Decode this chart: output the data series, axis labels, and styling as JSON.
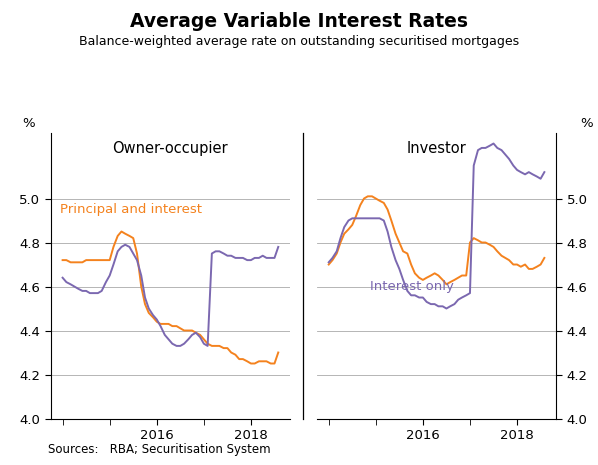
{
  "title": "Average Variable Interest Rates",
  "subtitle": "Balance-weighted average rate on outstanding securitised mortgages",
  "left_panel_title": "Owner-occupier",
  "right_panel_title": "Investor",
  "ylabel_left": "%",
  "ylabel_right": "%",
  "source": "Sources:   RBA; Securitisation System",
  "ylim": [
    4.0,
    5.3
  ],
  "yticks": [
    4.0,
    4.2,
    4.4,
    4.6,
    4.8,
    5.0
  ],
  "xlim": [
    2013.75,
    2018.83
  ],
  "orange_color": "#F4821E",
  "purple_color": "#7B68B0",
  "line_width": 1.4,
  "oo_pi_x": [
    2014.0,
    2014.08,
    2014.17,
    2014.25,
    2014.33,
    2014.42,
    2014.5,
    2014.58,
    2014.67,
    2014.75,
    2014.83,
    2014.92,
    2015.0,
    2015.08,
    2015.17,
    2015.25,
    2015.33,
    2015.42,
    2015.5,
    2015.58,
    2015.67,
    2015.75,
    2015.83,
    2015.92,
    2016.0,
    2016.08,
    2016.17,
    2016.25,
    2016.33,
    2016.42,
    2016.5,
    2016.58,
    2016.67,
    2016.75,
    2016.83,
    2016.92,
    2017.0,
    2017.08,
    2017.17,
    2017.25,
    2017.33,
    2017.42,
    2017.5,
    2017.58,
    2017.67,
    2017.75,
    2017.83,
    2017.92,
    2018.0,
    2018.08,
    2018.17,
    2018.25,
    2018.33,
    2018.42,
    2018.5,
    2018.58
  ],
  "oo_pi_y": [
    4.72,
    4.72,
    4.71,
    4.71,
    4.71,
    4.71,
    4.72,
    4.72,
    4.72,
    4.72,
    4.72,
    4.72,
    4.72,
    4.78,
    4.83,
    4.85,
    4.84,
    4.83,
    4.82,
    4.75,
    4.6,
    4.52,
    4.48,
    4.46,
    4.44,
    4.43,
    4.43,
    4.43,
    4.42,
    4.42,
    4.41,
    4.4,
    4.4,
    4.4,
    4.39,
    4.38,
    4.36,
    4.34,
    4.33,
    4.33,
    4.33,
    4.32,
    4.32,
    4.3,
    4.29,
    4.27,
    4.27,
    4.26,
    4.25,
    4.25,
    4.26,
    4.26,
    4.26,
    4.25,
    4.25,
    4.3
  ],
  "oo_io_x": [
    2014.0,
    2014.08,
    2014.17,
    2014.25,
    2014.33,
    2014.42,
    2014.5,
    2014.58,
    2014.67,
    2014.75,
    2014.83,
    2014.92,
    2015.0,
    2015.08,
    2015.17,
    2015.25,
    2015.33,
    2015.42,
    2015.5,
    2015.58,
    2015.67,
    2015.75,
    2015.83,
    2015.92,
    2016.0,
    2016.08,
    2016.17,
    2016.25,
    2016.33,
    2016.42,
    2016.5,
    2016.58,
    2016.67,
    2016.75,
    2016.83,
    2016.92,
    2017.0,
    2017.08,
    2017.17,
    2017.25,
    2017.33,
    2017.42,
    2017.5,
    2017.58,
    2017.67,
    2017.75,
    2017.83,
    2017.92,
    2018.0,
    2018.08,
    2018.17,
    2018.25,
    2018.33,
    2018.42,
    2018.5,
    2018.58
  ],
  "oo_io_y": [
    4.64,
    4.62,
    4.61,
    4.6,
    4.59,
    4.58,
    4.58,
    4.57,
    4.57,
    4.57,
    4.58,
    4.62,
    4.65,
    4.7,
    4.76,
    4.78,
    4.79,
    4.78,
    4.75,
    4.72,
    4.65,
    4.55,
    4.5,
    4.47,
    4.45,
    4.42,
    4.38,
    4.36,
    4.34,
    4.33,
    4.33,
    4.34,
    4.36,
    4.38,
    4.39,
    4.37,
    4.34,
    4.33,
    4.75,
    4.76,
    4.76,
    4.75,
    4.74,
    4.74,
    4.73,
    4.73,
    4.73,
    4.72,
    4.72,
    4.73,
    4.73,
    4.74,
    4.73,
    4.73,
    4.73,
    4.78
  ],
  "inv_pi_x": [
    2014.0,
    2014.08,
    2014.17,
    2014.25,
    2014.33,
    2014.42,
    2014.5,
    2014.58,
    2014.67,
    2014.75,
    2014.83,
    2014.92,
    2015.0,
    2015.08,
    2015.17,
    2015.25,
    2015.33,
    2015.42,
    2015.5,
    2015.58,
    2015.67,
    2015.75,
    2015.83,
    2015.92,
    2016.0,
    2016.08,
    2016.17,
    2016.25,
    2016.33,
    2016.42,
    2016.5,
    2016.58,
    2016.67,
    2016.75,
    2016.83,
    2016.92,
    2017.0,
    2017.08,
    2017.17,
    2017.25,
    2017.33,
    2017.42,
    2017.5,
    2017.58,
    2017.67,
    2017.75,
    2017.83,
    2017.92,
    2018.0,
    2018.08,
    2018.17,
    2018.25,
    2018.33,
    2018.42,
    2018.5,
    2018.58
  ],
  "inv_pi_y": [
    4.7,
    4.72,
    4.75,
    4.8,
    4.84,
    4.86,
    4.88,
    4.92,
    4.97,
    5.0,
    5.01,
    5.01,
    5.0,
    4.99,
    4.98,
    4.95,
    4.9,
    4.84,
    4.8,
    4.76,
    4.75,
    4.7,
    4.66,
    4.64,
    4.63,
    4.64,
    4.65,
    4.66,
    4.65,
    4.63,
    4.61,
    4.62,
    4.63,
    4.64,
    4.65,
    4.65,
    4.8,
    4.82,
    4.81,
    4.8,
    4.8,
    4.79,
    4.78,
    4.76,
    4.74,
    4.73,
    4.72,
    4.7,
    4.7,
    4.69,
    4.7,
    4.68,
    4.68,
    4.69,
    4.7,
    4.73
  ],
  "inv_io_x": [
    2014.0,
    2014.08,
    2014.17,
    2014.25,
    2014.33,
    2014.42,
    2014.5,
    2014.58,
    2014.67,
    2014.75,
    2014.83,
    2014.92,
    2015.0,
    2015.08,
    2015.17,
    2015.25,
    2015.33,
    2015.42,
    2015.5,
    2015.58,
    2015.67,
    2015.75,
    2015.83,
    2015.92,
    2016.0,
    2016.08,
    2016.17,
    2016.25,
    2016.33,
    2016.42,
    2016.5,
    2016.58,
    2016.67,
    2016.75,
    2016.83,
    2016.92,
    2017.0,
    2017.08,
    2017.17,
    2017.25,
    2017.33,
    2017.42,
    2017.5,
    2017.58,
    2017.67,
    2017.75,
    2017.83,
    2017.92,
    2018.0,
    2018.08,
    2018.17,
    2018.25,
    2018.33,
    2018.42,
    2018.5,
    2018.58
  ],
  "inv_io_y": [
    4.71,
    4.73,
    4.76,
    4.82,
    4.87,
    4.9,
    4.91,
    4.91,
    4.91,
    4.91,
    4.91,
    4.91,
    4.91,
    4.91,
    4.9,
    4.85,
    4.78,
    4.72,
    4.68,
    4.63,
    4.58,
    4.56,
    4.56,
    4.55,
    4.55,
    4.53,
    4.52,
    4.52,
    4.51,
    4.51,
    4.5,
    4.51,
    4.52,
    4.54,
    4.55,
    4.56,
    4.57,
    5.15,
    5.22,
    5.23,
    5.23,
    5.24,
    5.25,
    5.23,
    5.22,
    5.2,
    5.18,
    5.15,
    5.13,
    5.12,
    5.11,
    5.12,
    5.11,
    5.1,
    5.09,
    5.12
  ]
}
